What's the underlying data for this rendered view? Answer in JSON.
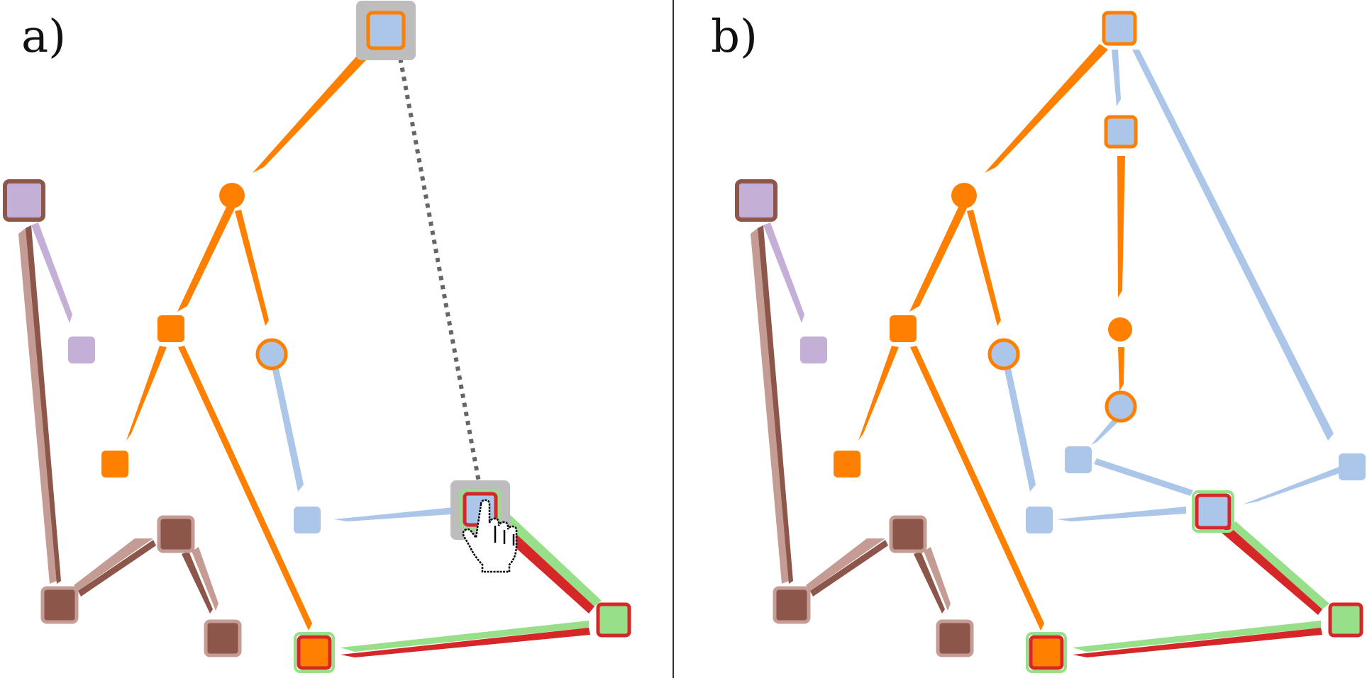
{
  "panels": [
    {
      "id": "a",
      "label": "a)"
    },
    {
      "id": "b",
      "label": "b)"
    }
  ],
  "colors": {
    "orange": "#ff8000",
    "light_blue": "#abc6e8",
    "lavender": "#c4afd6",
    "brown": "#8c564b",
    "brown_light": "#c49c94",
    "red": "#d62728",
    "green": "#98df8a",
    "highlight_gray": "#bdbdbd",
    "dotted_gray": "#666666",
    "divider": "#333333"
  },
  "icons": {
    "cursor": "hand-pointer-icon"
  }
}
